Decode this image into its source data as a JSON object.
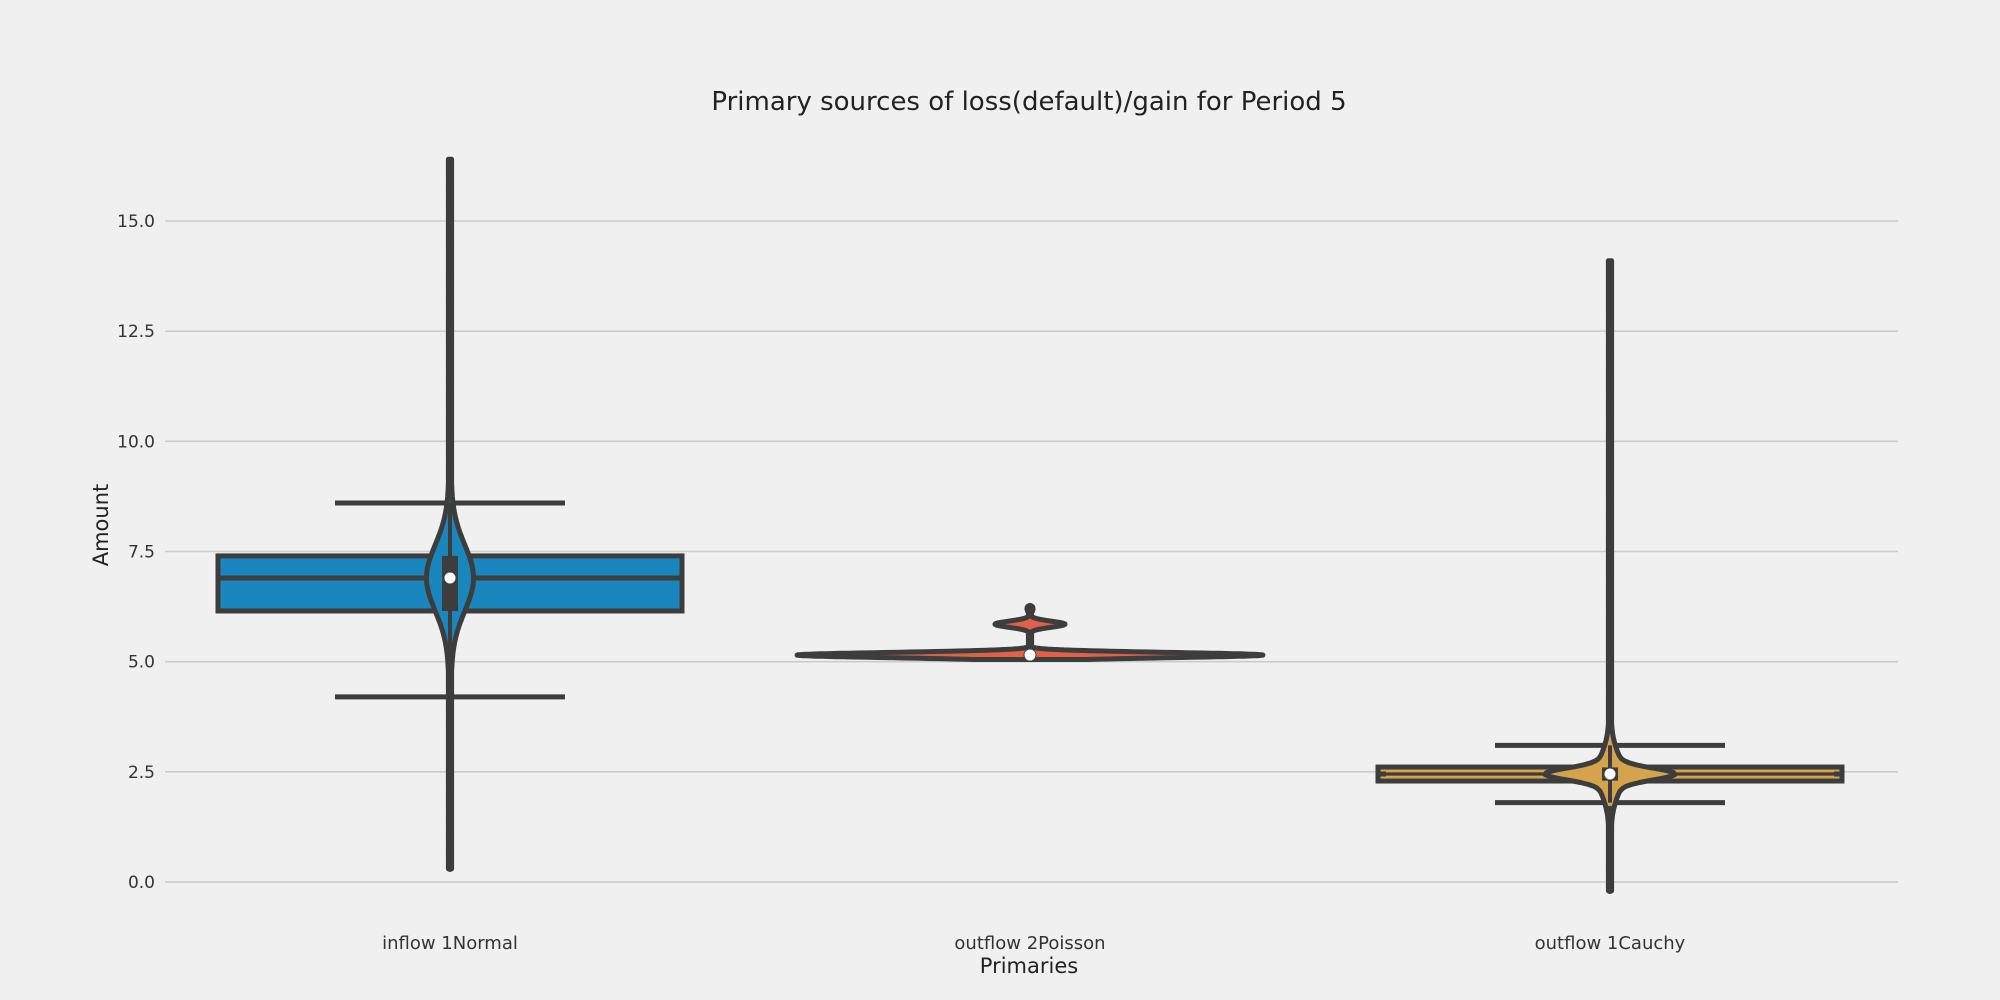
{
  "chart_data": {
    "type": "violin",
    "title": "Primary sources of loss(default)/gain for Period 5",
    "xlabel": "Primaries",
    "ylabel": "Amount",
    "ylim": [
      -0.3,
      16.5
    ],
    "yticks": [
      0.0,
      2.5,
      5.0,
      7.5,
      10.0,
      12.5,
      15.0
    ],
    "ytick_labels": [
      "0.0",
      "2.5",
      "5.0",
      "7.5",
      "10.0",
      "12.5",
      "15.0"
    ],
    "grid": true,
    "categories": [
      "inflow 1Normal",
      "outflow 2Poisson",
      "outflow 1Cauchy"
    ],
    "series": [
      {
        "category": "inflow 1Normal",
        "color": "#1a86be",
        "box": {
          "q1": 6.15,
          "median": 6.9,
          "q3": 7.4
        },
        "whiskers": {
          "low": 4.2,
          "high": 8.6
        },
        "violin": {
          "min": 0.3,
          "max": 16.4,
          "center": 6.9
        }
      },
      {
        "category": "outflow 2Poisson",
        "color": "#e0604a",
        "box": {
          "q1": 5.15,
          "median": 5.15,
          "q3": 5.15
        },
        "whiskers": {
          "low": 5.15,
          "high": 5.15
        },
        "violin": {
          "min": 5.05,
          "max": 6.25,
          "center": 5.15
        }
      },
      {
        "category": "outflow 1Cauchy",
        "color": "#d6a34d",
        "box": {
          "q1": 2.3,
          "median": 2.45,
          "q3": 2.6
        },
        "whiskers": {
          "low": 1.8,
          "high": 3.1
        },
        "violin": {
          "min": -0.2,
          "max": 14.1,
          "center": 2.45
        }
      }
    ]
  }
}
